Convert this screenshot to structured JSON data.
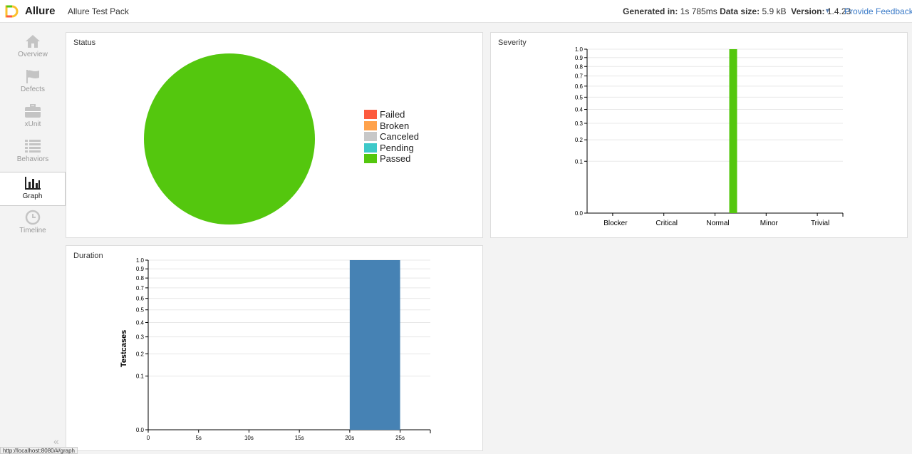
{
  "header": {
    "brand": "Allure",
    "project": "Allure Test Pack",
    "generated_label": "Generated in:",
    "generated_value": "1s 785ms",
    "size_label": "Data size:",
    "size_value": "5.9 kB",
    "version_label": "Version:",
    "version_value": "1.4.23",
    "feedback": "Provide Feedback"
  },
  "sidebar": {
    "items": [
      {
        "label": "Overview",
        "icon": "home-icon"
      },
      {
        "label": "Defects",
        "icon": "flag-icon"
      },
      {
        "label": "xUnit",
        "icon": "briefcase-icon"
      },
      {
        "label": "Behaviors",
        "icon": "list-icon"
      },
      {
        "label": "Graph",
        "icon": "bar-chart-icon",
        "active": true
      },
      {
        "label": "Timeline",
        "icon": "clock-icon"
      }
    ],
    "collapse": "«"
  },
  "status_url": "http://localhost:8080/#/graph",
  "colors": {
    "failed": "#fd5a3e",
    "broken": "#ffa24b",
    "canceled": "#c8c8c8",
    "pending": "#3ec9c9",
    "passed": "#54c70e",
    "duration": "#4682b4"
  },
  "panels": {
    "status": "Status",
    "severity": "Severity",
    "duration": "Duration"
  },
  "chart_data": [
    {
      "type": "pie",
      "title": "Status",
      "categories": [
        "Failed",
        "Broken",
        "Canceled",
        "Pending",
        "Passed"
      ],
      "values": [
        0,
        0,
        0,
        0,
        1
      ],
      "legend": "right"
    },
    {
      "type": "bar",
      "title": "Severity",
      "categories": [
        "Blocker",
        "Critical",
        "Normal",
        "Minor",
        "Trivial"
      ],
      "values": [
        0,
        0,
        1,
        0,
        0
      ],
      "ylim": [
        0,
        1
      ],
      "yscale": "sqrt",
      "yticks": [
        "0.0",
        "0.1",
        "0.2",
        "0.3",
        "0.4",
        "0.5",
        "0.6",
        "0.7",
        "0.8",
        "0.9",
        "1.0"
      ],
      "grid": true
    },
    {
      "type": "bar",
      "title": "Duration",
      "ylabel": "Testcases",
      "xticks": [
        "0",
        "5s",
        "10s",
        "15s",
        "20s",
        "25s"
      ],
      "xlim": [
        0,
        28
      ],
      "bins": [
        {
          "from": 20,
          "to": 25,
          "value": 1
        }
      ],
      "ylim": [
        0,
        1
      ],
      "yscale": "sqrt",
      "yticks": [
        "0.0",
        "0.1",
        "0.2",
        "0.3",
        "0.4",
        "0.5",
        "0.6",
        "0.7",
        "0.8",
        "0.9",
        "1.0"
      ],
      "grid": true
    }
  ]
}
